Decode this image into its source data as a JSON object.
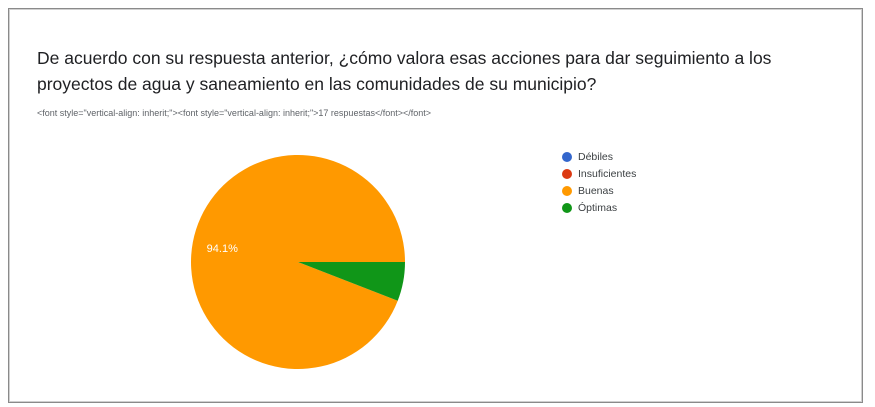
{
  "question": {
    "title": "De acuerdo con su respuesta anterior, ¿cómo valora esas acciones para dar seguimiento a los proyectos de agua y saneamiento en las comunidades de su municipio?",
    "responses": "<font style=\"vertical-align: inherit;\"><font style=\"vertical-align: inherit;\">17 respuestas</font></font>"
  },
  "chart_data": {
    "type": "pie",
    "categories": [
      "Débiles",
      "Insuficientes",
      "Buenas",
      "Óptimas"
    ],
    "values": [
      0,
      0,
      94.1,
      5.9
    ],
    "colors": [
      "#3366cc",
      "#dc3912",
      "#ff9900",
      "#109618"
    ],
    "slice_labels": [
      "",
      "",
      "94.1%",
      ""
    ],
    "legend_position": "right"
  }
}
